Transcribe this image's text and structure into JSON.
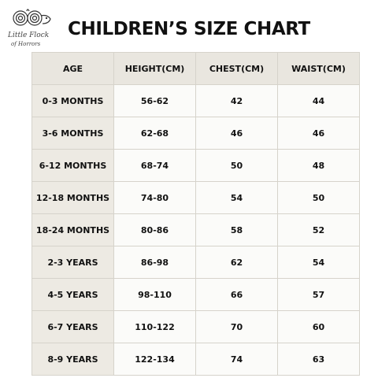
{
  "logo": {
    "line1": "Little Flock",
    "line2": "of Horrors"
  },
  "title": "CHILDREN’S SIZE CHART",
  "table": {
    "headers": [
      "AGE",
      "HEIGHT(CM)",
      "CHEST(CM)",
      "WAIST(CM)"
    ],
    "rows": [
      [
        "0-3 MONTHS",
        "56-62",
        "42",
        "44"
      ],
      [
        "3-6 MONTHS",
        "62-68",
        "46",
        "46"
      ],
      [
        "6-12 MONTHS",
        "68-74",
        "50",
        "48"
      ],
      [
        "12-18 MONTHS",
        "74-80",
        "54",
        "50"
      ],
      [
        "18-24 MONTHS",
        "80-86",
        "58",
        "52"
      ],
      [
        "2-3 YEARS",
        "86-98",
        "62",
        "54"
      ],
      [
        "4-5 YEARS",
        "98-110",
        "66",
        "57"
      ],
      [
        "6-7 YEARS",
        "110-122",
        "70",
        "60"
      ],
      [
        "8-9 YEARS",
        "122-134",
        "74",
        "63"
      ]
    ]
  },
  "colors": {
    "header_bg": "#e9e6df",
    "age_bg": "#edeae3",
    "cell_bg": "#fbfbf9",
    "border": "#d6d3cb"
  },
  "icons": {
    "logo": "sheep-logo-icon"
  }
}
